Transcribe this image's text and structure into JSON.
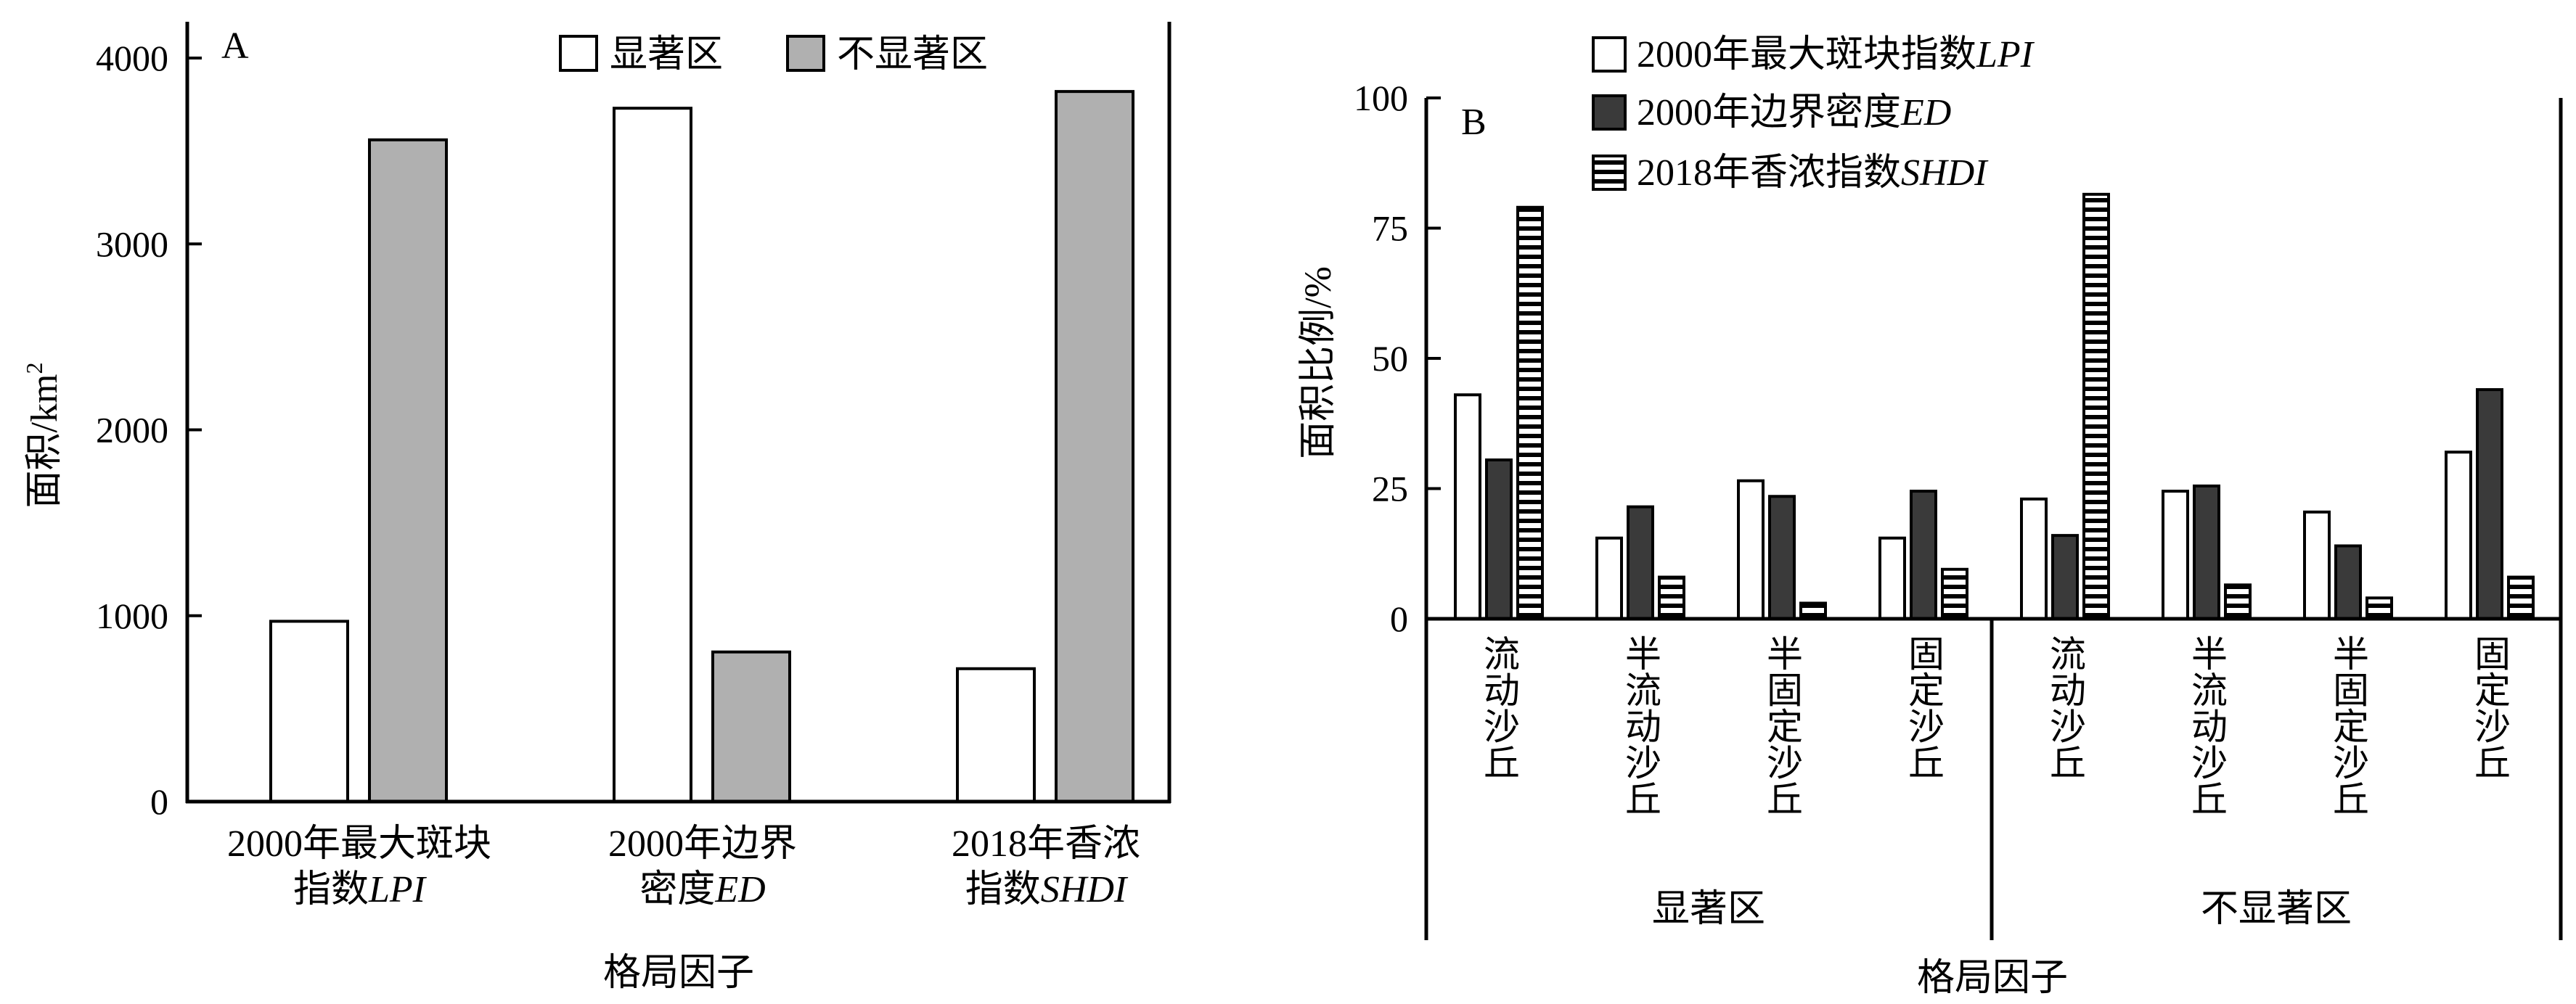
{
  "chart_data": [
    {
      "panel_label": "A",
      "type": "bar",
      "categories": [
        [
          "2000年最大斑块",
          "指数LPI"
        ],
        [
          "2000年边界",
          "密度ED"
        ],
        [
          "2018年香浓",
          "指数SHDI"
        ]
      ],
      "series": [
        {
          "name": "显著区",
          "values": [
            970,
            3730,
            715
          ]
        },
        {
          "name": "不显著区",
          "values": [
            3560,
            805,
            3820
          ]
        }
      ],
      "xlabel": "格局因子",
      "ylabel": "面积/km²",
      "ylim": [
        0,
        4000
      ],
      "yticks": [
        "0",
        "1000",
        "2000",
        "3000",
        "4000"
      ],
      "legend_position": "top",
      "grid": false
    },
    {
      "panel_label": "B",
      "type": "bar",
      "groups": [
        "显著区",
        "不显著区"
      ],
      "categories": [
        "流动沙丘",
        "半流动沙丘",
        "半固定沙丘",
        "固定沙丘",
        "流动沙丘",
        "半流动沙丘",
        "半固定沙丘",
        "固定沙丘"
      ],
      "series": [
        {
          "name": "2000年最大斑块指数LPI",
          "values": [
            43,
            15.5,
            26.5,
            15.5,
            23,
            24.5,
            20.5,
            32
          ]
        },
        {
          "name": "2000年边界密度ED",
          "values": [
            30.5,
            21.5,
            23.5,
            24.5,
            16,
            25.5,
            14,
            44
          ]
        },
        {
          "name": "2018年香浓指数SHDI",
          "values": [
            79,
            8,
            3,
            9.5,
            81.5,
            6.5,
            4,
            8
          ]
        }
      ],
      "xlabel": "格局因子",
      "ylabel": "面积比例/%",
      "ylim": [
        0,
        100
      ],
      "yticks": [
        "0",
        "25",
        "50",
        "75",
        "100"
      ],
      "legend_position": "top-left",
      "grid": false
    }
  ]
}
